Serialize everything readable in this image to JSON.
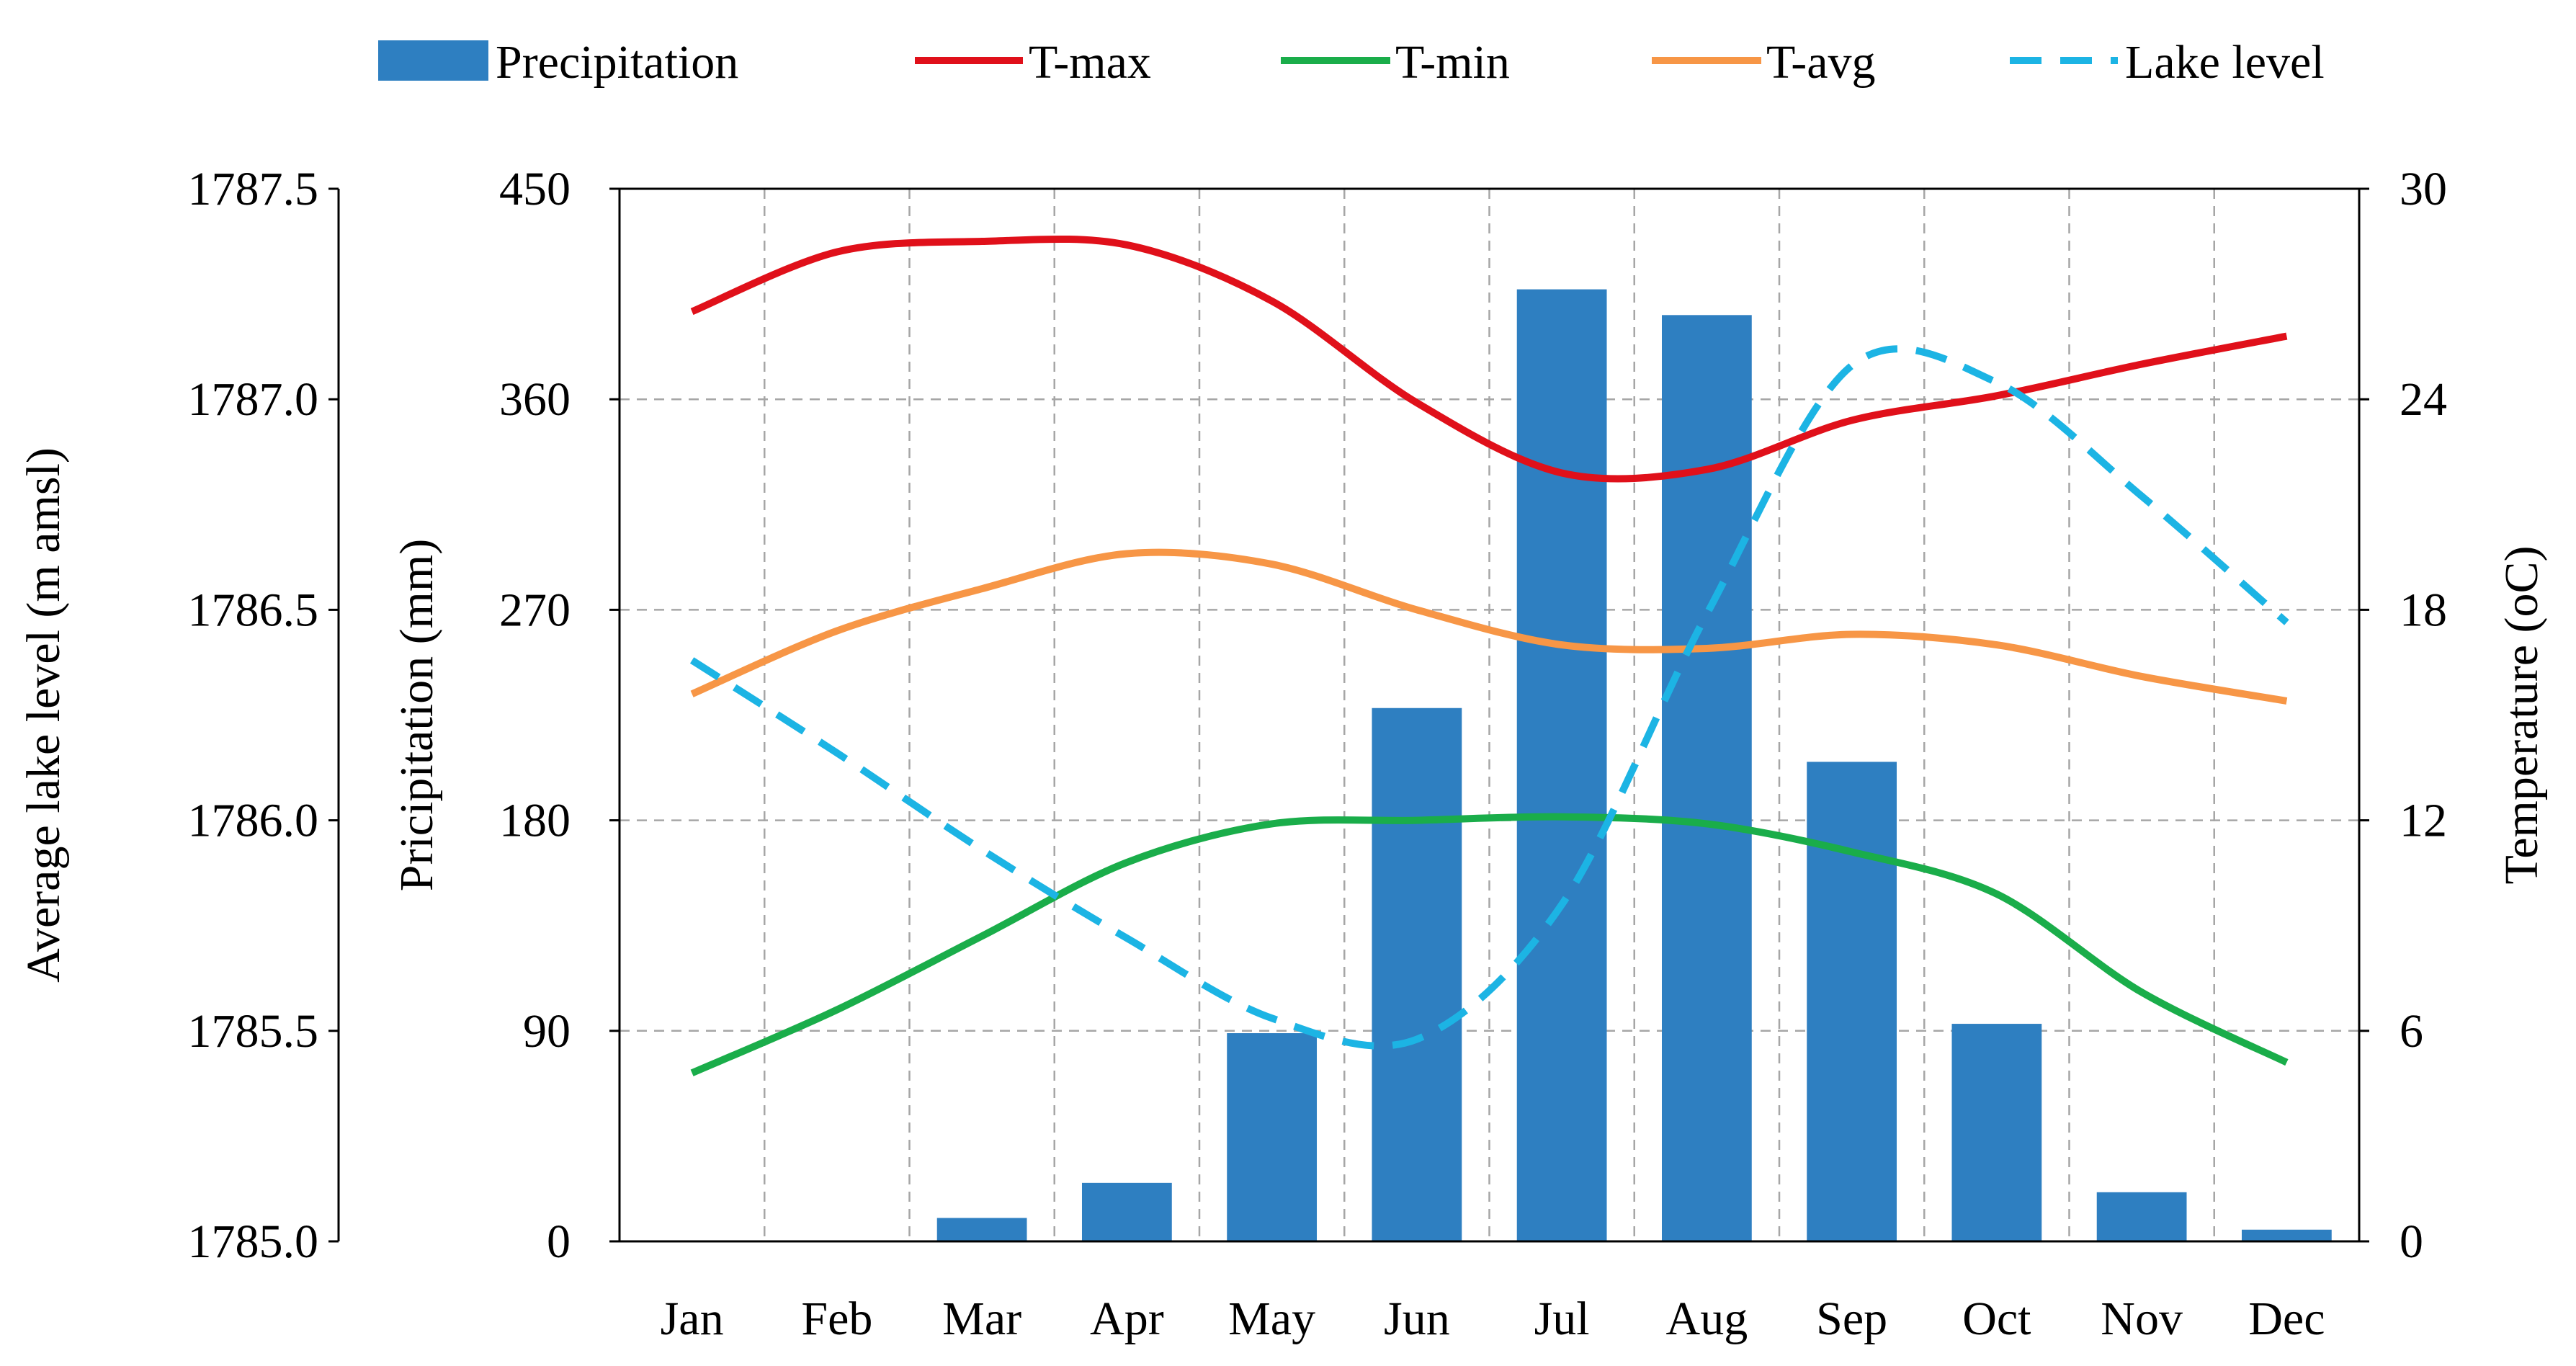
{
  "chart_data": {
    "type": "bar",
    "categories": [
      "Jan",
      "Feb",
      "Mar",
      "Apr",
      "May",
      "Jun",
      "Jul",
      "Aug",
      "Sep",
      "Oct",
      "Nov",
      "Dec"
    ],
    "series": [
      {
        "name": "Precipitation",
        "type": "bar",
        "axis": "precip",
        "color": "#2e7fc1",
        "values": [
          0,
          0,
          10,
          25,
          89,
          228,
          407,
          396,
          205,
          93,
          21,
          5
        ]
      },
      {
        "name": "T-max",
        "type": "line",
        "axis": "temp",
        "color": "#e0101a",
        "values": [
          26.5,
          28.2,
          28.5,
          28.4,
          26.8,
          23.9,
          21.9,
          22.0,
          23.4,
          24.1,
          25.0,
          25.8
        ]
      },
      {
        "name": "T-min",
        "type": "line",
        "axis": "temp",
        "color": "#1aad4a",
        "values": [
          4.8,
          6.6,
          8.7,
          10.8,
          11.9,
          12.0,
          12.1,
          11.9,
          11.1,
          9.9,
          7.1,
          5.1
        ]
      },
      {
        "name": "T-avg",
        "type": "line",
        "axis": "temp",
        "color": "#f79646",
        "values": [
          15.6,
          17.4,
          18.6,
          19.6,
          19.3,
          18.0,
          17.0,
          16.9,
          17.3,
          17.0,
          16.1,
          15.4
        ]
      },
      {
        "name": "Lake level",
        "type": "line",
        "dashed": true,
        "axis": "lake",
        "color": "#1cb4e4",
        "values": [
          1786.38,
          1786.16,
          1785.93,
          1785.72,
          1785.53,
          1785.48,
          1785.8,
          1786.49,
          1787.08,
          1787.04,
          1786.77,
          1786.47
        ]
      }
    ],
    "axes": {
      "lake": {
        "label": "Average lake level (m amsl)",
        "min": 1785.0,
        "max": 1787.5,
        "ticks": [
          "1785.0",
          "1785.5",
          "1786.0",
          "1786.5",
          "1787.0",
          "1787.5"
        ]
      },
      "precip": {
        "label": "Pricipitation (mm)",
        "min": 0,
        "max": 450,
        "ticks": [
          "0",
          "90",
          "180",
          "270",
          "360",
          "450"
        ]
      },
      "temp": {
        "label": "Temperature (oC)",
        "min": 0,
        "max": 30,
        "ticks": [
          "0",
          "6",
          "12",
          "18",
          "24",
          "30"
        ]
      }
    },
    "legend": {
      "position": "top",
      "entries": [
        "Precipitation",
        "T-max",
        "T-min",
        "T-avg",
        "Lake level"
      ]
    },
    "grid": true
  }
}
